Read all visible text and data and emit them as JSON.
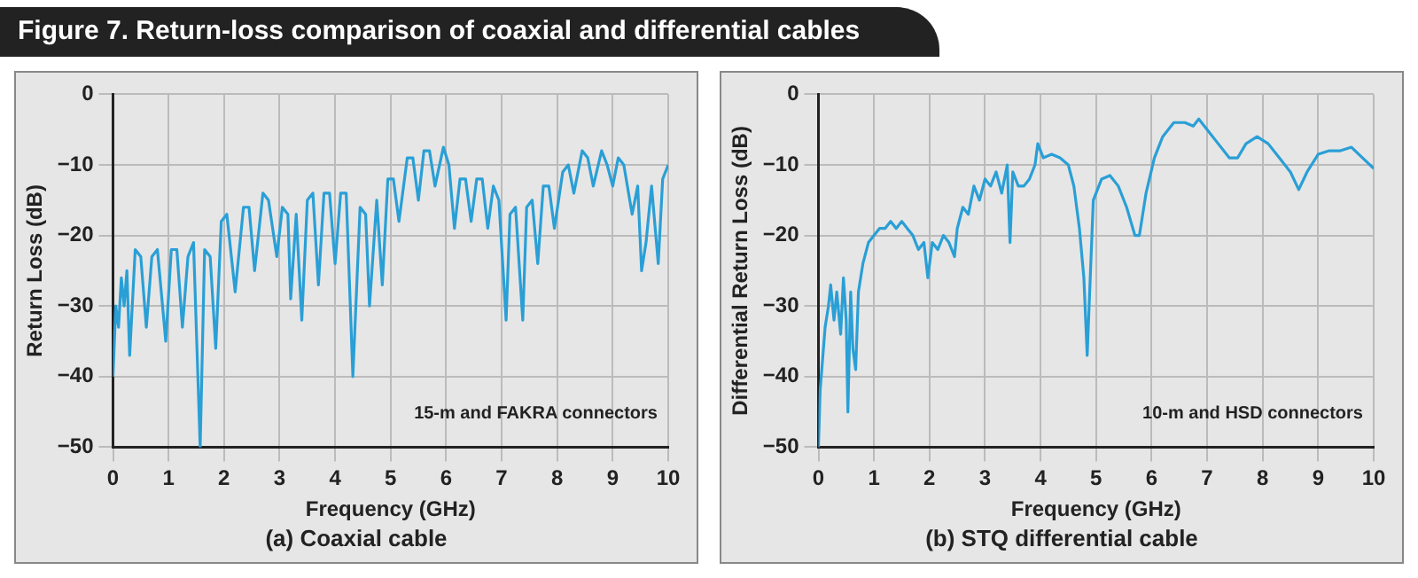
{
  "chart_data": [
    {
      "type": "line",
      "title": "Figure 7. Return-loss comparison of coaxial and differential cables",
      "subtitle": "(a) Coaxial cable",
      "xlabel": "Frequency (GHz)",
      "ylabel": "Return Loss (dB)",
      "annotations": [
        "15-m and FAKRA connectors"
      ],
      "xlim": [
        0,
        10
      ],
      "xticks": [
        0,
        1,
        2,
        3,
        4,
        5,
        6,
        7,
        8,
        9,
        10
      ],
      "ylim": [
        -50,
        0
      ],
      "yticks": [
        -50,
        -40,
        -30,
        -20,
        -10,
        0
      ],
      "grid": true,
      "legend": false,
      "marker": "none",
      "line_style": "solid",
      "series": [
        {
          "color": "#2a9fd6",
          "x": [
            0,
            0.05,
            0.1,
            0.15,
            0.2,
            0.25,
            0.3,
            0.4,
            0.5,
            0.6,
            0.7,
            0.8,
            0.95,
            1.05,
            1.15,
            1.25,
            1.35,
            1.45,
            1.57,
            1.65,
            1.75,
            1.85,
            1.95,
            2.05,
            2.2,
            2.35,
            2.45,
            2.55,
            2.7,
            2.8,
            2.95,
            3.05,
            3.15,
            3.2,
            3.3,
            3.4,
            3.5,
            3.6,
            3.7,
            3.8,
            3.9,
            4.0,
            4.1,
            4.2,
            4.32,
            4.45,
            4.55,
            4.62,
            4.75,
            4.85,
            4.95,
            5.05,
            5.15,
            5.3,
            5.4,
            5.5,
            5.6,
            5.7,
            5.8,
            5.95,
            6.05,
            6.15,
            6.25,
            6.35,
            6.45,
            6.55,
            6.65,
            6.75,
            6.85,
            6.95,
            7.08,
            7.15,
            7.25,
            7.38,
            7.45,
            7.55,
            7.65,
            7.75,
            7.85,
            7.95,
            8.1,
            8.2,
            8.3,
            8.45,
            8.55,
            8.65,
            8.8,
            8.9,
            9.0,
            9.1,
            9.2,
            9.35,
            9.45,
            9.52,
            9.6,
            9.7,
            9.82,
            9.9,
            10
          ],
          "values": [
            -40,
            -30,
            -33,
            -26,
            -30,
            -25,
            -37,
            -22,
            -23,
            -33,
            -23,
            -22,
            -35,
            -22,
            -22,
            -33,
            -23,
            -21,
            -50,
            -22,
            -23,
            -36,
            -18,
            -17,
            -28,
            -16,
            -16,
            -25,
            -14,
            -15,
            -23,
            -16,
            -17,
            -29,
            -17,
            -32,
            -15,
            -14,
            -27,
            -14,
            -14,
            -24,
            -14,
            -14,
            -40,
            -16,
            -17,
            -30,
            -15,
            -27,
            -12,
            -12,
            -18,
            -9,
            -9,
            -15,
            -8,
            -8,
            -13,
            -7.5,
            -10,
            -19,
            -12,
            -12,
            -18,
            -12,
            -12,
            -19,
            -13,
            -15,
            -32,
            -17,
            -16,
            -32,
            -16,
            -15,
            -24,
            -13,
            -13,
            -19,
            -11,
            -10,
            -14,
            -8,
            -9,
            -13,
            -8,
            -10,
            -13,
            -9,
            -10,
            -17,
            -13,
            -25,
            -21,
            -13,
            -24,
            -12,
            -10
          ]
        }
      ]
    },
    {
      "type": "line",
      "subtitle": "(b) STQ differential cable",
      "xlabel": "Frequency (GHz)",
      "ylabel": "Differential Return Loss (dB)",
      "annotations": [
        "10-m and HSD connectors"
      ],
      "xlim": [
        0,
        10
      ],
      "xticks": [
        0,
        1,
        2,
        3,
        4,
        5,
        6,
        7,
        8,
        9,
        10
      ],
      "ylim": [
        -50,
        0
      ],
      "yticks": [
        -50,
        -40,
        -30,
        -20,
        -10,
        0
      ],
      "grid": true,
      "legend": false,
      "marker": "none",
      "line_style": "solid",
      "series": [
        {
          "color": "#2a9fd6",
          "x": [
            0,
            0.03,
            0.08,
            0.12,
            0.18,
            0.22,
            0.28,
            0.33,
            0.4,
            0.45,
            0.5,
            0.53,
            0.58,
            0.62,
            0.67,
            0.72,
            0.8,
            0.9,
            1.0,
            1.1,
            1.2,
            1.3,
            1.4,
            1.5,
            1.6,
            1.7,
            1.8,
            1.9,
            1.97,
            2.05,
            2.15,
            2.25,
            2.35,
            2.45,
            2.5,
            2.6,
            2.7,
            2.8,
            2.9,
            3.0,
            3.1,
            3.2,
            3.3,
            3.4,
            3.45,
            3.5,
            3.6,
            3.7,
            3.8,
            3.9,
            3.95,
            4.05,
            4.2,
            4.35,
            4.5,
            4.6,
            4.7,
            4.78,
            4.84,
            4.9,
            4.95,
            5.1,
            5.25,
            5.4,
            5.55,
            5.7,
            5.78,
            5.9,
            6.05,
            6.2,
            6.4,
            6.6,
            6.75,
            6.85,
            7.0,
            7.2,
            7.4,
            7.55,
            7.7,
            7.9,
            8.1,
            8.3,
            8.5,
            8.65,
            8.8,
            9.0,
            9.2,
            9.4,
            9.6,
            9.8,
            10
          ],
          "values": [
            -50,
            -42,
            -37,
            -33,
            -30,
            -27,
            -32,
            -28,
            -34,
            -26,
            -32,
            -45,
            -28,
            -36,
            -39,
            -28,
            -24,
            -21,
            -20,
            -19,
            -19,
            -18,
            -19,
            -18,
            -19,
            -20,
            -22,
            -21,
            -26,
            -21,
            -22,
            -20,
            -21,
            -23,
            -19,
            -16,
            -17,
            -13,
            -15,
            -12,
            -13,
            -11,
            -14,
            -10,
            -21,
            -11,
            -13,
            -13,
            -12,
            -10,
            -7,
            -9,
            -8.5,
            -9,
            -10,
            -13,
            -19,
            -26,
            -37,
            -25,
            -15,
            -12,
            -11.5,
            -13,
            -16,
            -20,
            -20,
            -14,
            -9,
            -6,
            -4,
            -4,
            -4.5,
            -3.5,
            -5,
            -7,
            -9,
            -9,
            -7,
            -6,
            -7,
            -9,
            -11,
            -13.5,
            -11,
            -8.5,
            -8,
            -8,
            -7.5,
            -9,
            -10.5
          ]
        }
      ]
    }
  ]
}
